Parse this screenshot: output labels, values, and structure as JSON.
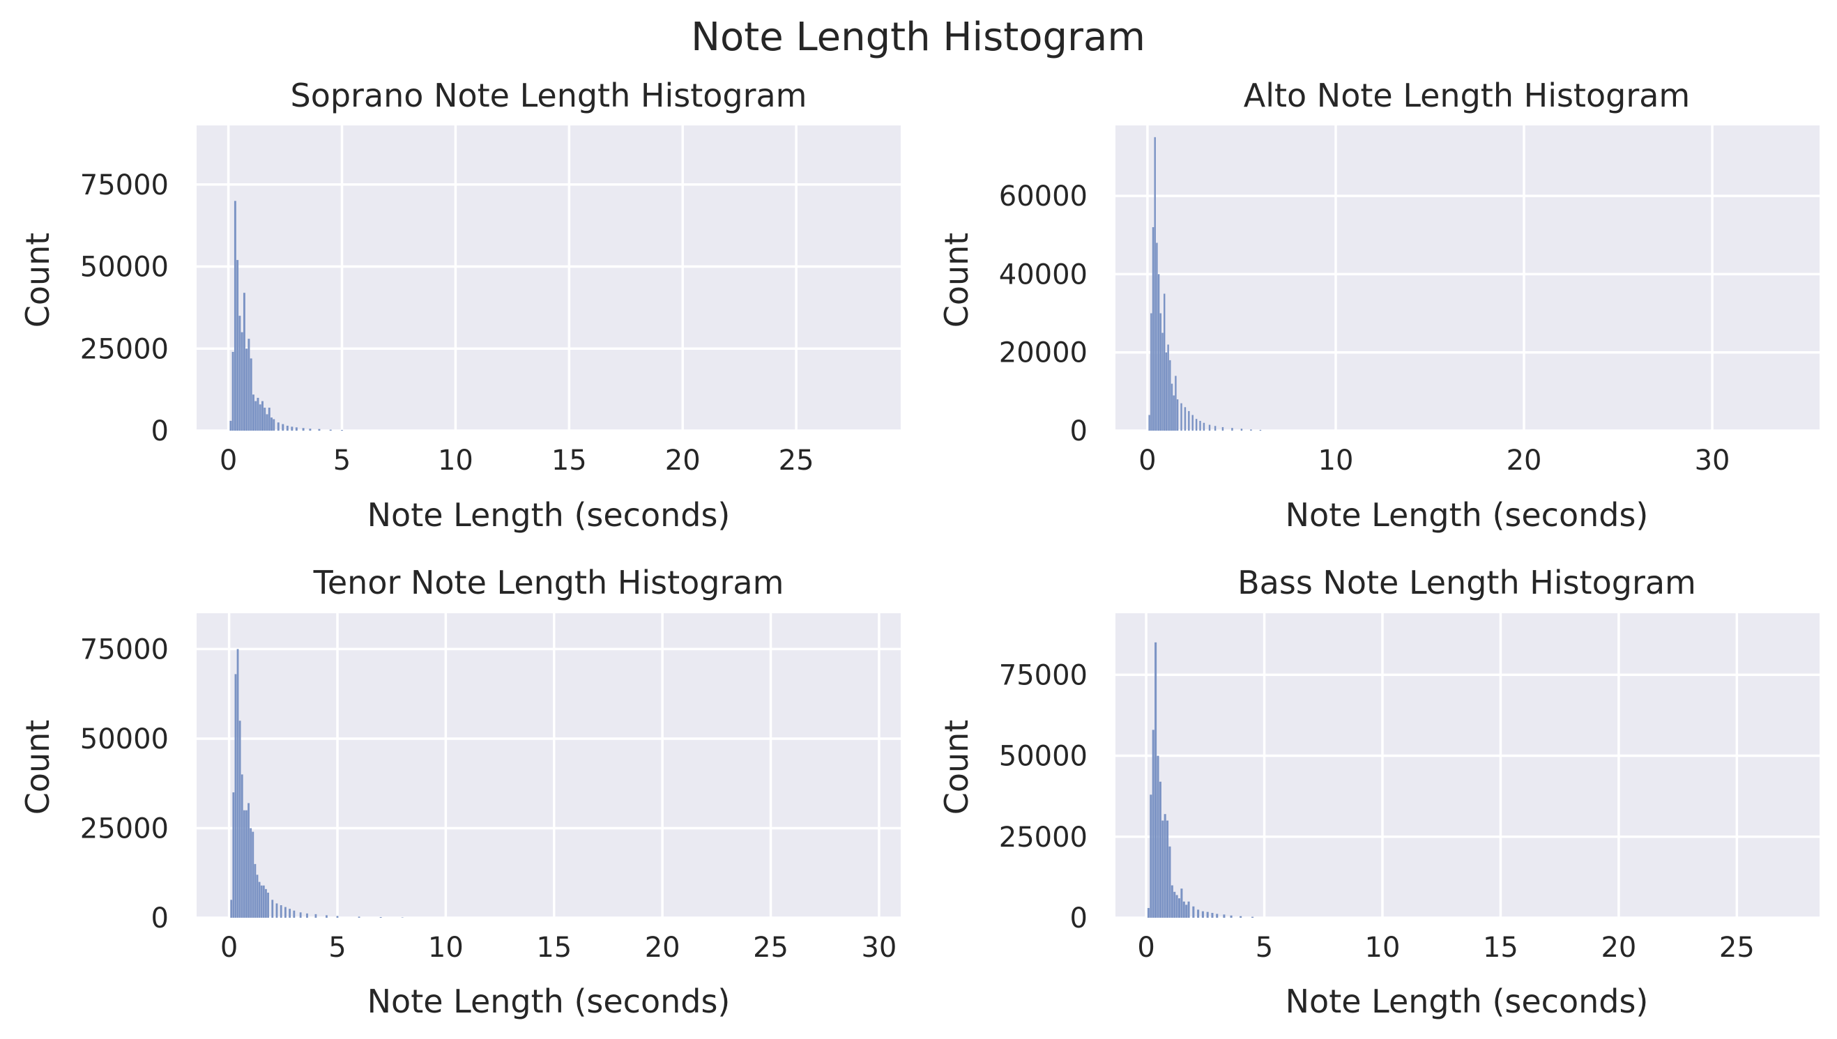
{
  "figure": {
    "title": "Note Length Histogram",
    "background": "#ffffff",
    "axes_bg": "#eaeaf2",
    "grid_color": "#ffffff",
    "bar_color": "#7b93c4"
  },
  "chart_data": [
    {
      "type": "bar",
      "title": "Soprano Note Length Histogram",
      "xlabel": "Note Length (seconds)",
      "ylabel": "Count",
      "xlim": [
        -1.4,
        29.6
      ],
      "ylim": [
        0,
        93000
      ],
      "xticks": [
        0,
        5,
        10,
        15,
        20,
        25
      ],
      "yticks": [
        0,
        25000,
        50000,
        75000
      ],
      "grid": true,
      "legend": "none",
      "x": [
        0.1,
        0.2,
        0.3,
        0.4,
        0.5,
        0.6,
        0.7,
        0.8,
        0.9,
        1.0,
        1.1,
        1.2,
        1.3,
        1.4,
        1.5,
        1.6,
        1.7,
        1.8,
        1.9,
        2.0,
        2.2,
        2.4,
        2.6,
        2.8,
        3.0,
        3.3,
        3.6,
        4.0,
        4.5,
        5.0
      ],
      "values": [
        3000,
        24000,
        70000,
        52000,
        35000,
        30000,
        42000,
        25000,
        28000,
        22000,
        11000,
        9000,
        10000,
        8000,
        9000,
        7000,
        5000,
        7000,
        4000,
        3500,
        2500,
        2000,
        1500,
        1200,
        1000,
        800,
        600,
        500,
        300,
        200
      ]
    },
    {
      "type": "bar",
      "title": "Alto Note Length Histogram",
      "xlabel": "Note Length (seconds)",
      "ylabel": "Count",
      "xlim": [
        -1.7,
        35.7
      ],
      "ylim": [
        0,
        78000
      ],
      "xticks": [
        0,
        10,
        20,
        30
      ],
      "yticks": [
        0,
        20000,
        40000,
        60000
      ],
      "grid": true,
      "legend": "none",
      "x": [
        0.1,
        0.2,
        0.3,
        0.4,
        0.5,
        0.6,
        0.7,
        0.8,
        0.9,
        1.0,
        1.1,
        1.2,
        1.3,
        1.4,
        1.5,
        1.6,
        1.8,
        2.0,
        2.2,
        2.4,
        2.6,
        2.8,
        3.0,
        3.3,
        3.6,
        4.0,
        4.5,
        5.0,
        5.5,
        6.0
      ],
      "values": [
        4000,
        30000,
        52000,
        75000,
        48000,
        40000,
        30000,
        25000,
        35000,
        20000,
        22000,
        18000,
        12000,
        9000,
        14000,
        8000,
        7000,
        6000,
        5000,
        4000,
        3000,
        2500,
        2000,
        1500,
        1200,
        900,
        700,
        500,
        300,
        200
      ]
    },
    {
      "type": "bar",
      "title": "Tenor Note Length Histogram",
      "xlabel": "Note Length (seconds)",
      "ylabel": "Count",
      "xlim": [
        -1.5,
        31.0
      ],
      "ylim": [
        0,
        85000
      ],
      "xticks": [
        0,
        5,
        10,
        15,
        20,
        25,
        30
      ],
      "yticks": [
        0,
        25000,
        50000,
        75000
      ],
      "grid": true,
      "legend": "none",
      "x": [
        0.1,
        0.2,
        0.3,
        0.4,
        0.5,
        0.6,
        0.7,
        0.8,
        0.9,
        1.0,
        1.1,
        1.2,
        1.3,
        1.4,
        1.5,
        1.6,
        1.7,
        1.8,
        2.0,
        2.2,
        2.4,
        2.6,
        2.8,
        3.0,
        3.3,
        3.6,
        4.0,
        4.5,
        5.0,
        6.0,
        7.0,
        8.0
      ],
      "values": [
        5000,
        35000,
        68000,
        75000,
        55000,
        40000,
        30000,
        30000,
        32000,
        25000,
        24000,
        15000,
        12000,
        10000,
        9000,
        9000,
        8000,
        7000,
        5000,
        4000,
        3500,
        3000,
        2500,
        2000,
        1500,
        1200,
        1000,
        700,
        500,
        300,
        200,
        100
      ]
    },
    {
      "type": "bar",
      "title": "Bass Note Length Histogram",
      "xlabel": "Note Length (seconds)",
      "ylabel": "Count",
      "xlim": [
        -1.3,
        28.5
      ],
      "ylim": [
        0,
        94000
      ],
      "xticks": [
        0,
        5,
        10,
        15,
        20,
        25
      ],
      "yticks": [
        0,
        25000,
        50000,
        75000
      ],
      "grid": true,
      "legend": "none",
      "x": [
        0.1,
        0.2,
        0.3,
        0.4,
        0.5,
        0.6,
        0.7,
        0.8,
        0.9,
        1.0,
        1.1,
        1.2,
        1.3,
        1.4,
        1.5,
        1.6,
        1.7,
        1.8,
        2.0,
        2.2,
        2.4,
        2.6,
        2.8,
        3.0,
        3.3,
        3.6,
        4.0,
        4.5
      ],
      "values": [
        3000,
        38000,
        58000,
        85000,
        50000,
        42000,
        30000,
        32000,
        30000,
        22000,
        10000,
        8000,
        7000,
        6000,
        9000,
        5000,
        4000,
        5000,
        3500,
        2500,
        2000,
        1800,
        1500,
        1200,
        1000,
        700,
        500,
        300
      ]
    }
  ]
}
